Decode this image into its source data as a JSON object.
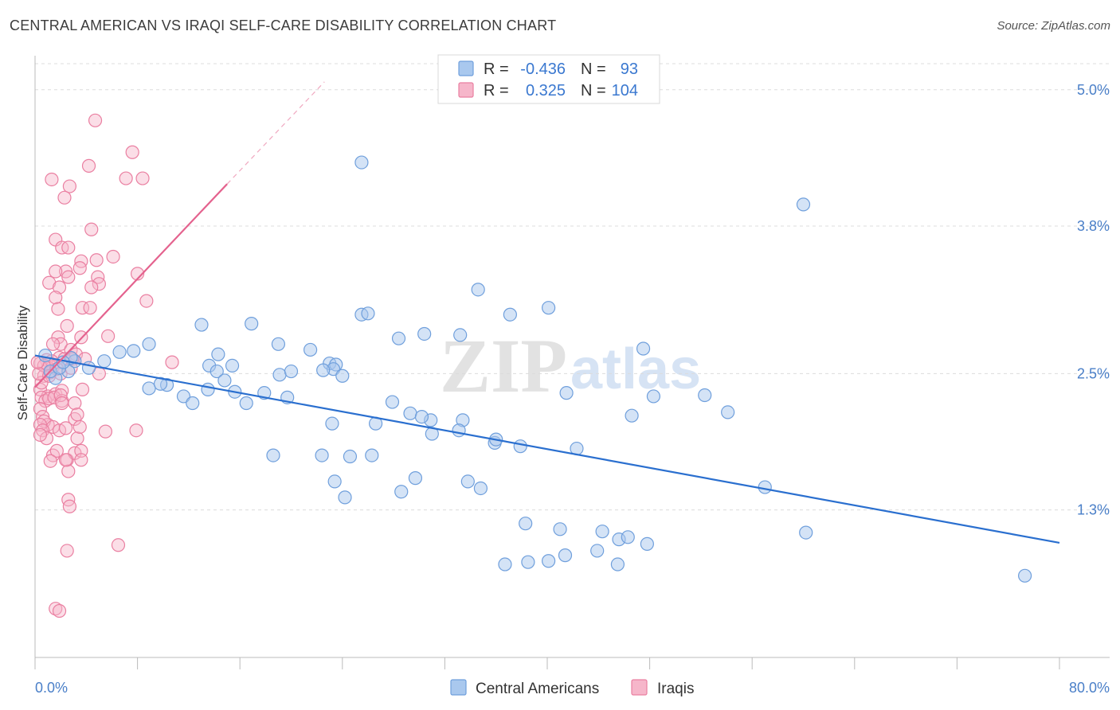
{
  "title": "CENTRAL AMERICAN VS IRAQI SELF-CARE DISABILITY CORRELATION CHART",
  "source": "Source: ZipAtlas.com",
  "watermark": {
    "zip": "ZIP",
    "atlas": "atlas"
  },
  "colors": {
    "blue_fill": "#a9c8ee",
    "blue_stroke": "#6f9fdc",
    "blue_line": "#2a6fcf",
    "pink_fill": "#f6b6ca",
    "pink_stroke": "#ea7fa1",
    "pink_line": "#e4628e",
    "tick_text": "#4a7fc8"
  },
  "legend": {
    "rows": [
      {
        "r_label": "R =",
        "r_value": "-0.436",
        "n_label": "N =",
        "n_value": "93"
      },
      {
        "r_label": "R =",
        "r_value": "0.325",
        "n_label": "N =",
        "n_value": "104"
      }
    ]
  },
  "bottom_legend": {
    "items": [
      "Central Americans",
      "Iraqis"
    ]
  },
  "chart_data": {
    "type": "scatter",
    "title": "CENTRAL AMERICAN VS IRAQI SELF-CARE DISABILITY CORRELATION CHART",
    "xlabel": "",
    "ylabel": "Self-Care Disability",
    "xlim": [
      0,
      80
    ],
    "ylim": [
      0.0,
      5.3
    ],
    "x_tick_labels": [
      "0.0%",
      "80.0%"
    ],
    "y_ticks": [
      1.3,
      2.5,
      3.8,
      5.0
    ],
    "y_tick_labels": [
      "1.3%",
      "2.5%",
      "3.8%",
      "5.0%"
    ],
    "grid": "horizontal dashed",
    "legend_position": "top-center",
    "series": [
      {
        "name": "Central Americans",
        "color": "#a9c8ee",
        "trend": {
          "x": [
            0,
            80
          ],
          "y": [
            2.66,
            1.01
          ]
        },
        "points": [
          [
            25.5,
            4.36
          ],
          [
            60.0,
            3.99
          ],
          [
            34.6,
            3.24
          ],
          [
            37.1,
            3.02
          ],
          [
            40.1,
            3.08
          ],
          [
            25.5,
            3.02
          ],
          [
            26.0,
            3.03
          ],
          [
            16.9,
            2.94
          ],
          [
            13.0,
            2.93
          ],
          [
            28.4,
            2.81
          ],
          [
            30.4,
            2.85
          ],
          [
            33.2,
            2.84
          ],
          [
            47.5,
            2.72
          ],
          [
            19.0,
            2.76
          ],
          [
            21.5,
            2.71
          ],
          [
            14.3,
            2.67
          ],
          [
            8.9,
            2.76
          ],
          [
            7.7,
            2.7
          ],
          [
            6.6,
            2.69
          ],
          [
            5.4,
            2.61
          ],
          [
            3.1,
            2.61
          ],
          [
            4.2,
            2.55
          ],
          [
            2.8,
            2.64
          ],
          [
            2.6,
            2.52
          ],
          [
            1.6,
            2.46
          ],
          [
            1.2,
            2.52
          ],
          [
            0.8,
            2.66
          ],
          [
            1.9,
            2.55
          ],
          [
            2.2,
            2.6
          ],
          [
            13.6,
            2.57
          ],
          [
            10.3,
            2.4
          ],
          [
            14.2,
            2.52
          ],
          [
            11.6,
            2.3
          ],
          [
            8.9,
            2.37
          ],
          [
            9.8,
            2.41
          ],
          [
            12.3,
            2.24
          ],
          [
            13.5,
            2.36
          ],
          [
            15.6,
            2.34
          ],
          [
            17.9,
            2.33
          ],
          [
            19.1,
            2.49
          ],
          [
            23.0,
            2.59
          ],
          [
            23.5,
            2.58
          ],
          [
            20.0,
            2.52
          ],
          [
            23.3,
            2.54
          ],
          [
            22.5,
            2.53
          ],
          [
            19.7,
            2.29
          ],
          [
            16.5,
            2.24
          ],
          [
            14.8,
            2.44
          ],
          [
            24.0,
            2.48
          ],
          [
            27.9,
            2.25
          ],
          [
            30.9,
            2.09
          ],
          [
            33.4,
            2.09
          ],
          [
            26.6,
            2.06
          ],
          [
            23.2,
            2.06
          ],
          [
            29.3,
            2.15
          ],
          [
            30.2,
            2.12
          ],
          [
            33.1,
            2.0
          ],
          [
            35.9,
            1.89
          ],
          [
            37.9,
            1.86
          ],
          [
            42.3,
            1.84
          ],
          [
            46.6,
            2.13
          ],
          [
            48.3,
            2.3
          ],
          [
            52.3,
            2.31
          ],
          [
            54.1,
            2.16
          ],
          [
            41.5,
            2.33
          ],
          [
            31.0,
            1.97
          ],
          [
            24.6,
            1.77
          ],
          [
            26.3,
            1.78
          ],
          [
            22.4,
            1.78
          ],
          [
            18.6,
            1.78
          ],
          [
            36.0,
            1.92
          ],
          [
            29.7,
            1.58
          ],
          [
            28.6,
            1.46
          ],
          [
            33.8,
            1.55
          ],
          [
            34.8,
            1.49
          ],
          [
            23.4,
            1.55
          ],
          [
            24.2,
            1.41
          ],
          [
            38.3,
            1.18
          ],
          [
            41.0,
            1.13
          ],
          [
            44.3,
            1.11
          ],
          [
            45.6,
            1.04
          ],
          [
            46.3,
            1.06
          ],
          [
            47.8,
            1.0
          ],
          [
            43.9,
            0.94
          ],
          [
            41.4,
            0.9
          ],
          [
            36.7,
            0.82
          ],
          [
            38.5,
            0.84
          ],
          [
            40.1,
            0.85
          ],
          [
            45.5,
            0.82
          ],
          [
            57.0,
            1.5
          ],
          [
            60.2,
            1.1
          ],
          [
            77.3,
            0.72
          ],
          [
            15.4,
            2.57
          ]
        ]
      },
      {
        "name": "Iraqis",
        "color": "#f6b6ca",
        "trend": {
          "x": [
            0,
            15
          ],
          "y": [
            2.38,
            4.17
          ]
        },
        "trend_extension": {
          "x": [
            15,
            22.6
          ],
          "y": [
            4.17,
            5.07
          ]
        },
        "points": [
          [
            4.7,
            4.73
          ],
          [
            7.6,
            4.45
          ],
          [
            4.2,
            4.33
          ],
          [
            7.1,
            4.22
          ],
          [
            8.4,
            4.22
          ],
          [
            1.3,
            4.21
          ],
          [
            2.7,
            4.15
          ],
          [
            2.3,
            4.05
          ],
          [
            4.4,
            3.77
          ],
          [
            1.6,
            3.68
          ],
          [
            2.1,
            3.61
          ],
          [
            2.6,
            3.61
          ],
          [
            6.1,
            3.53
          ],
          [
            4.8,
            3.5
          ],
          [
            3.6,
            3.49
          ],
          [
            3.5,
            3.43
          ],
          [
            2.4,
            3.4
          ],
          [
            1.6,
            3.4
          ],
          [
            2.6,
            3.35
          ],
          [
            8.0,
            3.38
          ],
          [
            4.9,
            3.35
          ],
          [
            5.0,
            3.29
          ],
          [
            1.1,
            3.3
          ],
          [
            1.9,
            3.26
          ],
          [
            4.4,
            3.26
          ],
          [
            1.6,
            3.17
          ],
          [
            3.7,
            3.08
          ],
          [
            4.3,
            3.08
          ],
          [
            1.8,
            3.07
          ],
          [
            8.7,
            3.14
          ],
          [
            2.5,
            2.92
          ],
          [
            1.8,
            2.82
          ],
          [
            5.7,
            2.83
          ],
          [
            3.6,
            2.82
          ],
          [
            2.0,
            2.76
          ],
          [
            1.4,
            2.76
          ],
          [
            2.8,
            2.71
          ],
          [
            3.2,
            2.67
          ],
          [
            1.9,
            2.64
          ],
          [
            0.9,
            2.62
          ],
          [
            0.4,
            2.59
          ],
          [
            1.0,
            2.55
          ],
          [
            1.4,
            2.56
          ],
          [
            2.3,
            2.63
          ],
          [
            0.7,
            2.48
          ],
          [
            1.2,
            2.51
          ],
          [
            1.3,
            2.61
          ],
          [
            2.9,
            2.63
          ],
          [
            5.0,
            2.5
          ],
          [
            10.7,
            2.6
          ],
          [
            0.4,
            2.36
          ],
          [
            1.0,
            2.3
          ],
          [
            1.6,
            2.32
          ],
          [
            2.1,
            2.35
          ],
          [
            3.7,
            2.36
          ],
          [
            0.5,
            2.29
          ],
          [
            0.8,
            2.26
          ],
          [
            1.1,
            2.28
          ],
          [
            1.5,
            2.29
          ],
          [
            2.1,
            2.26
          ],
          [
            2.0,
            2.31
          ],
          [
            2.1,
            2.24
          ],
          [
            3.1,
            2.24
          ],
          [
            0.4,
            2.19
          ],
          [
            0.6,
            2.12
          ],
          [
            1.0,
            2.05
          ],
          [
            0.7,
            2.08
          ],
          [
            0.4,
            2.05
          ],
          [
            1.4,
            2.03
          ],
          [
            3.1,
            2.1
          ],
          [
            3.3,
            2.14
          ],
          [
            0.6,
            2.0
          ],
          [
            0.9,
            1.93
          ],
          [
            1.9,
            2.0
          ],
          [
            2.4,
            2.02
          ],
          [
            3.3,
            1.93
          ],
          [
            3.5,
            2.03
          ],
          [
            5.5,
            1.99
          ],
          [
            7.9,
            2.0
          ],
          [
            0.4,
            1.96
          ],
          [
            1.4,
            1.78
          ],
          [
            1.7,
            1.82
          ],
          [
            2.5,
            1.74
          ],
          [
            2.6,
            1.64
          ],
          [
            3.1,
            1.8
          ],
          [
            3.6,
            1.82
          ],
          [
            3.6,
            1.74
          ],
          [
            1.2,
            1.73
          ],
          [
            2.4,
            1.74
          ],
          [
            2.6,
            1.39
          ],
          [
            2.7,
            1.33
          ],
          [
            6.5,
            0.99
          ],
          [
            2.5,
            0.94
          ],
          [
            1.6,
            0.43
          ],
          [
            1.9,
            0.41
          ],
          [
            0.7,
            2.57
          ],
          [
            1.7,
            2.54
          ],
          [
            2.0,
            2.5
          ],
          [
            0.5,
            2.42
          ],
          [
            0.3,
            2.5
          ],
          [
            0.2,
            2.6
          ],
          [
            1.1,
            2.48
          ],
          [
            2.8,
            2.55
          ],
          [
            3.9,
            2.63
          ]
        ]
      }
    ]
  }
}
